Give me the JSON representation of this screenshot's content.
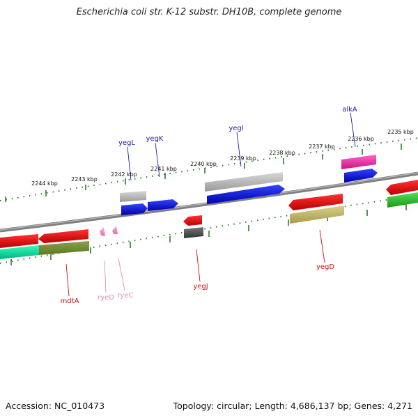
{
  "header": {
    "title": "Escherichia coli str. K-12 substr. DH10B, complete genome"
  },
  "footer": {
    "accession": "Accession: NC_010473",
    "summary": "Topology: circular; Length: 4,686,137 bp; Genes: 4,271"
  },
  "scale_ticks": [
    "2244 kbp",
    "2243 kbp",
    "2242 kbp",
    "2241 kbp",
    "2240 kbp",
    "2239 kbp",
    "2238 kbp",
    "2237 kbp",
    "2236 kbp",
    "2235 kbp"
  ],
  "gene_labels": {
    "forward": [
      "yegL",
      "yegK",
      "yegI",
      "alkA"
    ],
    "reverse": [
      "mdtA",
      "ryeD",
      "ryeC",
      "yegJ",
      "yegD"
    ]
  },
  "colors": {
    "forward_label": "#1a1aa6",
    "reverse_label": "#cc1111",
    "rna_label": "#e88ab8",
    "tick": "#2a7a2a",
    "backbone": "#808080"
  }
}
